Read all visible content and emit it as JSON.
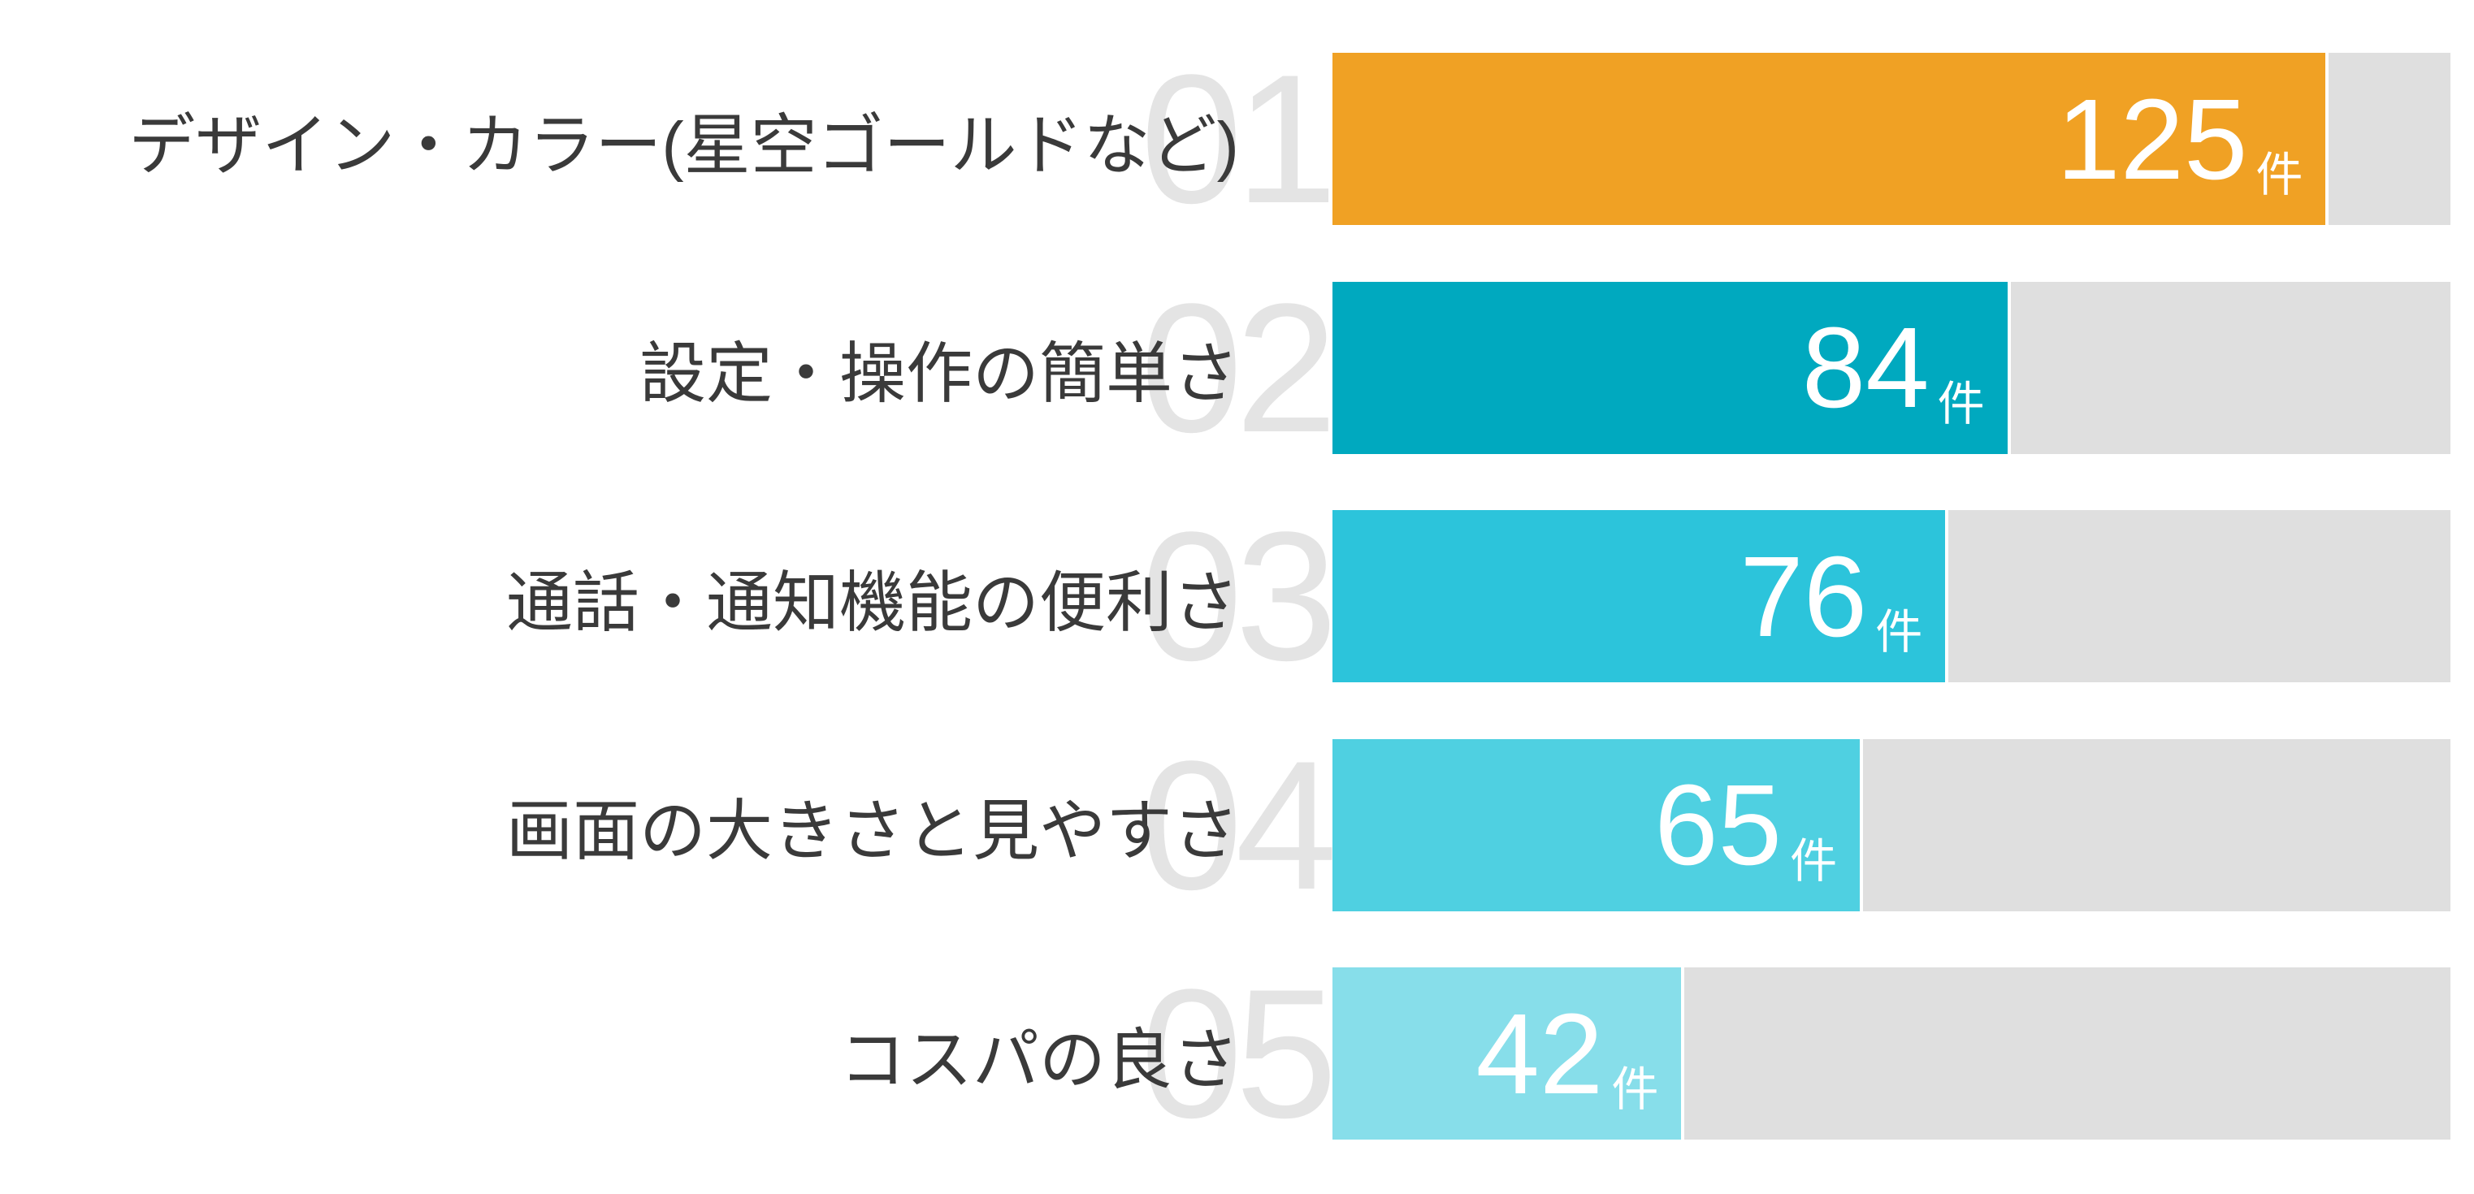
{
  "chart_data": {
    "type": "bar",
    "orientation": "horizontal",
    "title": "",
    "grid": "off",
    "legend": "none",
    "unit": "件",
    "categories": [
      "デザイン・カラー(星空ゴールドなど)",
      "設定・操作の簡単さ",
      "通話・通知機能の便利さ",
      "画面の大きさと見やすさ",
      "コスパの良さ"
    ],
    "values": [
      125,
      84,
      76,
      65,
      42
    ],
    "rank_labels": [
      "01",
      "02",
      "03",
      "04",
      "05"
    ],
    "axis_max": 144,
    "bar_colors": [
      "#F0A124",
      "#00A9BF",
      "#2CC4DB",
      "#4FD0E1",
      "#87DEEA"
    ],
    "track_color": "#DFDFDF",
    "rank_number_color": "#E4E4E4",
    "label_color": "#3A3A3A",
    "value_text_color": "#FFFFFF"
  }
}
